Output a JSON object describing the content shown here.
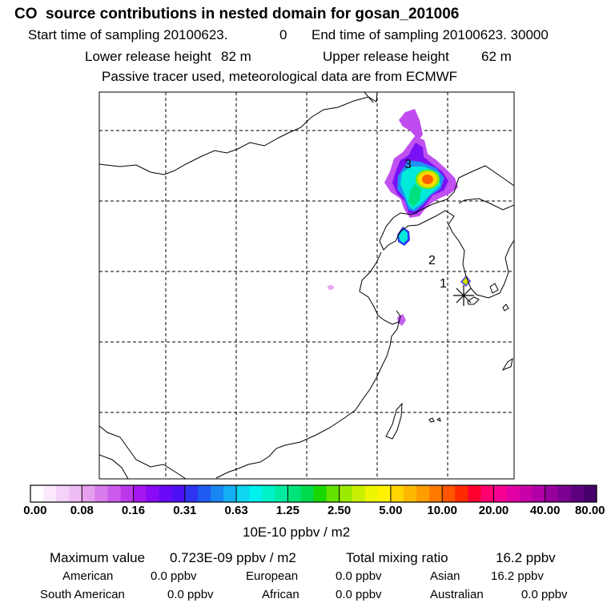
{
  "header": {
    "title": "CO  source contributions in nested domain for gosan_201006",
    "start_label": "Start time of sampling 20100623.",
    "start_value": "0",
    "end_label": "End time of sampling 20100623. 30000",
    "lower_label": "Lower release height",
    "lower_value": "82 m",
    "upper_label": "Upper release height",
    "upper_value": "62 m",
    "info": "Passive tracer used, meteorological data are from ECMWF"
  },
  "map": {
    "markers": [
      {
        "label": "3"
      },
      {
        "label": "2"
      },
      {
        "label": "1"
      }
    ],
    "station_symbol": "receptor-asterisk"
  },
  "colorbar": {
    "ticks": [
      "0.00",
      "0.08",
      "0.16",
      "0.31",
      "0.63",
      "1.25",
      "2.50",
      "5.00",
      "10.00",
      "20.00",
      "40.00",
      "80.00"
    ],
    "units": "10E-10 ppbv / m2",
    "colors": [
      "#ffffff",
      "#fbe9fb",
      "#f5d2f7",
      "#efbbf4",
      "#e6a0f0",
      "#d97cec",
      "#cc5aea",
      "#bb38ea",
      "#a516f0",
      "#8a0af5",
      "#6a08f7",
      "#4d10f5",
      "#2f33f2",
      "#1f5bf2",
      "#1785f2",
      "#14aef3",
      "#0fd4f2",
      "#00f2ee",
      "#00f2c9",
      "#00eda1",
      "#00e57a",
      "#00db4e",
      "#19d700",
      "#62e300",
      "#9aeb00",
      "#c9ef00",
      "#eef500",
      "#fff200",
      "#ffd500",
      "#ffb800",
      "#ff9c00",
      "#ff7a00",
      "#ff5400",
      "#ff2b00",
      "#ff0030",
      "#ff0070",
      "#f70092",
      "#e000a3",
      "#c800a8",
      "#b000a5",
      "#96009c",
      "#7a0090",
      "#5e0080",
      "#45006c"
    ]
  },
  "footer": {
    "max_label": "Maximum value",
    "max_value": "0.723E-09 ppbv / m2",
    "total_label": "Total mixing ratio",
    "total_value": "16.2 ppbv",
    "regions": [
      {
        "name": "American",
        "value": "0.0 ppbv"
      },
      {
        "name": "European",
        "value": "0.0 ppbv"
      },
      {
        "name": "Asian",
        "value": "16.2 ppbv"
      },
      {
        "name": "South American",
        "value": "0.0 ppbv"
      },
      {
        "name": "African",
        "value": "0.0 ppbv"
      },
      {
        "name": "Australian",
        "value": "0.0 ppbv"
      }
    ]
  }
}
